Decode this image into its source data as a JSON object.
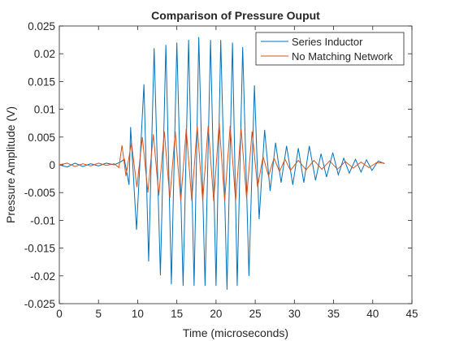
{
  "chart_data": {
    "type": "line",
    "title": "Comparison of Pressure Ouput",
    "x_label": "Time (microseconds)",
    "y_label": "Pressure Amplitude (V)",
    "xlim": [
      0,
      45
    ],
    "xticks": [
      0,
      5,
      10,
      15,
      20,
      25,
      30,
      35,
      40,
      45
    ],
    "ylim": [
      -0.025,
      0.025
    ],
    "yticks": [
      -0.025,
      -0.02,
      -0.015,
      -0.01,
      -0.005,
      0,
      0.005,
      0.01,
      0.015,
      0.02,
      0.025
    ],
    "legend": "top-right",
    "series": [
      {
        "name": "Series Inductor",
        "color": "#0072bd",
        "x": [
          0,
          1,
          2,
          3,
          4,
          5,
          6,
          7,
          7.8,
          8.3,
          8.9,
          9.1,
          9.85,
          10.8,
          11.4,
          12.1,
          12.9,
          13.6,
          14.3,
          15.0,
          15.8,
          16.5,
          17.2,
          17.8,
          18.6,
          19.3,
          20.0,
          20.6,
          21.4,
          22.1,
          22.7,
          23.4,
          24.2,
          24.9,
          25.5,
          26.2,
          26.9,
          27.6,
          28.3,
          29.0,
          29.8,
          30.5,
          31.2,
          31.9,
          32.7,
          33.4,
          34.1,
          34.9,
          35.6,
          36.3,
          37.0,
          37.8,
          38.5,
          39.2,
          39.9,
          40.7,
          41.5
        ],
        "values": [
          0,
          -0.0004,
          0.0003,
          -0.0003,
          0.0002,
          -0.0002,
          0.0003,
          0.0,
          0.0005,
          0.001,
          -0.0036,
          0.0068,
          -0.0117,
          0.0145,
          -0.0174,
          0.021,
          -0.0199,
          0.0216,
          -0.0215,
          0.022,
          -0.0218,
          0.0225,
          -0.0218,
          0.023,
          -0.0218,
          0.0225,
          -0.0218,
          0.0225,
          -0.0225,
          0.022,
          -0.0218,
          0.0212,
          -0.02,
          0.0143,
          -0.0098,
          0.0063,
          -0.0047,
          0.004,
          -0.0032,
          0.0034,
          -0.0036,
          0.003,
          -0.0032,
          0.0034,
          -0.0028,
          0.002,
          -0.0022,
          0.0022,
          -0.0018,
          0.0012,
          -0.0015,
          0.001,
          -0.0013,
          0.0009,
          -0.001,
          0.0007,
          0.0002
        ]
      },
      {
        "name": "No Matching Network",
        "color": "#d95319",
        "x": [
          0,
          1,
          2,
          3,
          4,
          5,
          6,
          7,
          7.6,
          8.0,
          8.5,
          9.2,
          9.9,
          10.6,
          11.3,
          12.0,
          12.7,
          13.4,
          14.1,
          14.8,
          15.5,
          16.2,
          16.9,
          17.6,
          18.3,
          19.0,
          19.7,
          20.4,
          21.1,
          21.8,
          22.5,
          23.2,
          23.9,
          24.6,
          25.3,
          26.0,
          26.7,
          27.4,
          28.1,
          28.8,
          29.5,
          30.5,
          31.5,
          32.5,
          33.5,
          34.5,
          35.5,
          36.5,
          37.5,
          38.5,
          39.5,
          40.5,
          41.5
        ],
        "values": [
          0,
          0.0003,
          -0.0003,
          0.0002,
          -0.0002,
          0.0003,
          -0.0001,
          0.0002,
          -0.0005,
          0.0035,
          -0.002,
          0.004,
          -0.004,
          0.005,
          -0.005,
          0.0055,
          -0.0055,
          0.006,
          -0.006,
          0.006,
          -0.0065,
          0.0065,
          -0.0065,
          0.007,
          -0.0065,
          0.007,
          -0.0065,
          0.0075,
          -0.0065,
          0.007,
          -0.0065,
          0.0065,
          -0.006,
          0.006,
          -0.004,
          0.0015,
          -0.002,
          0.0012,
          -0.0012,
          0.001,
          -0.001,
          0.0008,
          -0.0009,
          0.0008,
          -0.0008,
          0.0007,
          -0.0008,
          0.0006,
          -0.0006,
          0.0005,
          -0.0005,
          0.0004,
          0.0003
        ]
      }
    ]
  }
}
